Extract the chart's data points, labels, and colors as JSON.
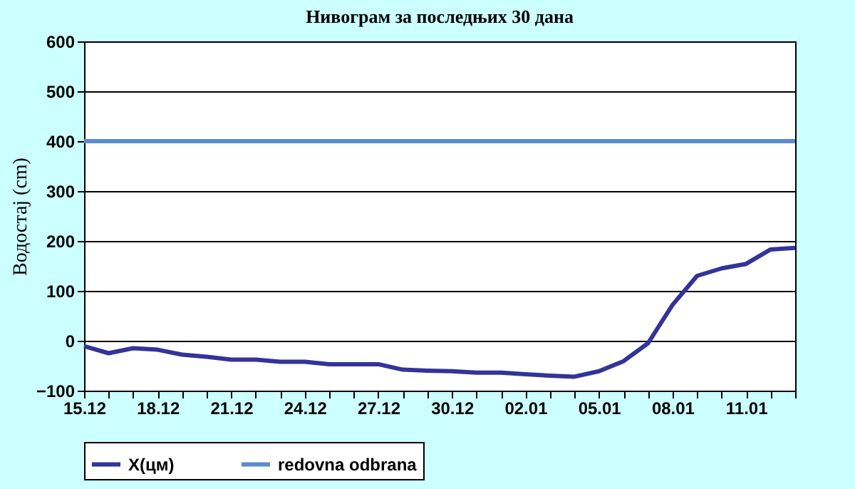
{
  "chart_data": {
    "type": "line",
    "title": "Нивограм за последњих 30 дана",
    "ylabel": "Водостај (cm)",
    "categories": [
      "15.12",
      null,
      null,
      "18.12",
      null,
      null,
      "21.12",
      null,
      null,
      "24.12",
      null,
      null,
      "27.12",
      null,
      null,
      "30.12",
      null,
      null,
      "02.01",
      null,
      null,
      "05.01",
      null,
      null,
      "08.01",
      null,
      null,
      "11.01",
      null,
      null
    ],
    "series": [
      {
        "name": "X(цм)",
        "color": "#333399",
        "values": [
          -11,
          -25,
          -15,
          -18,
          -28,
          -32,
          -38,
          -38,
          -42,
          -42,
          -47,
          -47,
          -47,
          -58,
          -60,
          -61,
          -64,
          -64,
          -67,
          -70,
          -72,
          -61,
          -41,
          -5,
          72,
          130,
          145,
          154,
          183,
          186
        ]
      },
      {
        "name": "redovna odbrana",
        "color": "#5b8bd0",
        "values": [
          400,
          400,
          400,
          400,
          400,
          400,
          400,
          400,
          400,
          400,
          400,
          400,
          400,
          400,
          400,
          400,
          400,
          400,
          400,
          400,
          400,
          400,
          400,
          400,
          400,
          400,
          400,
          400,
          400,
          400
        ]
      }
    ],
    "ylim": [
      -100,
      600
    ],
    "yticks": [
      -100,
      0,
      100,
      200,
      300,
      400,
      500,
      600
    ],
    "grid": "y",
    "legend": "bottom",
    "marker": "none",
    "line_style": "solid"
  }
}
